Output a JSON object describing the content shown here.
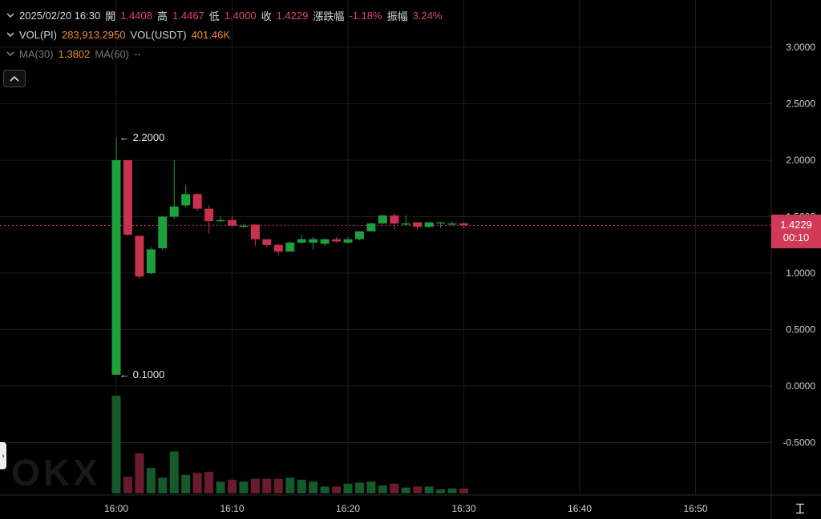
{
  "header": {
    "row1": {
      "datetime": "2025/02/20 16:30",
      "open_label": "開",
      "open": "1.4408",
      "high_label": "高",
      "high": "1.4467",
      "low_label": "低",
      "low": "1.4000",
      "close_label": "收",
      "close": "1.4229",
      "change_label": "漲跌幅",
      "change": "-1.18%",
      "amplitude_label": "振幅",
      "amplitude": "3.24%"
    },
    "row2": {
      "vol_coin_label": "VOL(PI)",
      "vol_coin": "283,913.2950",
      "vol_usdt_label": "VOL(USDT)",
      "vol_usdt": "401.46K"
    },
    "row3": {
      "ma30_label": "MA(30)",
      "ma30": "1.3802",
      "ma60_label": "MA(60)",
      "ma60": "--"
    }
  },
  "price_tag": {
    "price": "1.4229",
    "countdown": "00:10"
  },
  "colors": {
    "up": "#1fa03f",
    "down": "#c8324e",
    "up_vol": "#145a2b",
    "down_vol": "#6a1c2c",
    "grid": "#1c1c1c"
  },
  "chart_data": {
    "type": "candlestick",
    "interval": "1m",
    "yticks": [
      "3.0000",
      "2.5000",
      "2.0000",
      "1.5000",
      "1.0000",
      "0.5000",
      "0.0000",
      "-0.5000"
    ],
    "ytick_values": [
      3.0,
      2.5,
      2.0,
      1.5,
      1.0,
      0.5,
      0.0,
      -0.5
    ],
    "xticks": [
      "16:00",
      "16:10",
      "16:20",
      "16:30",
      "16:40",
      "16:50"
    ],
    "xtick_minutes": [
      0,
      10,
      20,
      30,
      40,
      50
    ],
    "annotations": [
      {
        "minute": 0,
        "value": 2.2,
        "text": "← 2.2000"
      },
      {
        "minute": 0,
        "value": 0.1,
        "text": "← 0.1000"
      }
    ],
    "last_price": 1.4229,
    "candles": [
      {
        "m": 0,
        "o": 0.1,
        "h": 2.2,
        "l": 0.1,
        "c": 2.0,
        "v": 1.0
      },
      {
        "m": 1,
        "o": 2.0,
        "h": 2.0,
        "l": 1.33,
        "c": 1.34,
        "v": 0.17
      },
      {
        "m": 2,
        "o": 1.33,
        "h": 1.33,
        "l": 0.95,
        "c": 0.97,
        "v": 0.41
      },
      {
        "m": 3,
        "o": 1.0,
        "h": 1.23,
        "l": 0.99,
        "c": 1.21,
        "v": 0.26
      },
      {
        "m": 4,
        "o": 1.22,
        "h": 1.51,
        "l": 1.2,
        "c": 1.5,
        "v": 0.16
      },
      {
        "m": 5,
        "o": 1.5,
        "h": 2.0,
        "l": 1.48,
        "c": 1.59,
        "v": 0.43
      },
      {
        "m": 6,
        "o": 1.6,
        "h": 1.78,
        "l": 1.58,
        "c": 1.7,
        "v": 0.19
      },
      {
        "m": 7,
        "o": 1.7,
        "h": 1.71,
        "l": 1.55,
        "c": 1.57,
        "v": 0.21
      },
      {
        "m": 8,
        "o": 1.57,
        "h": 1.6,
        "l": 1.35,
        "c": 1.46,
        "v": 0.22
      },
      {
        "m": 9,
        "o": 1.47,
        "h": 1.5,
        "l": 1.45,
        "c": 1.47,
        "v": 0.12
      },
      {
        "m": 10,
        "o": 1.47,
        "h": 1.51,
        "l": 1.41,
        "c": 1.42,
        "v": 0.14
      },
      {
        "m": 11,
        "o": 1.42,
        "h": 1.44,
        "l": 1.4,
        "c": 1.42,
        "v": 0.12
      },
      {
        "m": 12,
        "o": 1.43,
        "h": 1.43,
        "l": 1.24,
        "c": 1.3,
        "v": 0.15
      },
      {
        "m": 13,
        "o": 1.3,
        "h": 1.3,
        "l": 1.23,
        "c": 1.25,
        "v": 0.15
      },
      {
        "m": 14,
        "o": 1.25,
        "h": 1.26,
        "l": 1.16,
        "c": 1.19,
        "v": 0.15
      },
      {
        "m": 15,
        "o": 1.19,
        "h": 1.28,
        "l": 1.19,
        "c": 1.27,
        "v": 0.16
      },
      {
        "m": 16,
        "o": 1.27,
        "h": 1.34,
        "l": 1.26,
        "c": 1.3,
        "v": 0.14
      },
      {
        "m": 17,
        "o": 1.27,
        "h": 1.32,
        "l": 1.21,
        "c": 1.3,
        "v": 0.12
      },
      {
        "m": 18,
        "o": 1.26,
        "h": 1.31,
        "l": 1.24,
        "c": 1.3,
        "v": 0.07
      },
      {
        "m": 19,
        "o": 1.3,
        "h": 1.32,
        "l": 1.27,
        "c": 1.28,
        "v": 0.07
      },
      {
        "m": 20,
        "o": 1.27,
        "h": 1.32,
        "l": 1.26,
        "c": 1.3,
        "v": 0.1
      },
      {
        "m": 21,
        "o": 1.3,
        "h": 1.37,
        "l": 1.29,
        "c": 1.37,
        "v": 0.11
      },
      {
        "m": 22,
        "o": 1.37,
        "h": 1.45,
        "l": 1.37,
        "c": 1.44,
        "v": 0.12
      },
      {
        "m": 23,
        "o": 1.44,
        "h": 1.52,
        "l": 1.43,
        "c": 1.51,
        "v": 0.08
      },
      {
        "m": 24,
        "o": 1.51,
        "h": 1.53,
        "l": 1.38,
        "c": 1.44,
        "v": 0.1
      },
      {
        "m": 25,
        "o": 1.43,
        "h": 1.51,
        "l": 1.42,
        "c": 1.44,
        "v": 0.06
      },
      {
        "m": 26,
        "o": 1.45,
        "h": 1.45,
        "l": 1.38,
        "c": 1.41,
        "v": 0.07
      },
      {
        "m": 27,
        "o": 1.41,
        "h": 1.45,
        "l": 1.4,
        "c": 1.45,
        "v": 0.07
      },
      {
        "m": 28,
        "o": 1.44,
        "h": 1.45,
        "l": 1.4,
        "c": 1.45,
        "v": 0.04
      },
      {
        "m": 29,
        "o": 1.44,
        "h": 1.46,
        "l": 1.42,
        "c": 1.44,
        "v": 0.05
      },
      {
        "m": 30,
        "o": 1.4408,
        "h": 1.4467,
        "l": 1.4,
        "c": 1.4229,
        "v": 0.05
      }
    ]
  }
}
